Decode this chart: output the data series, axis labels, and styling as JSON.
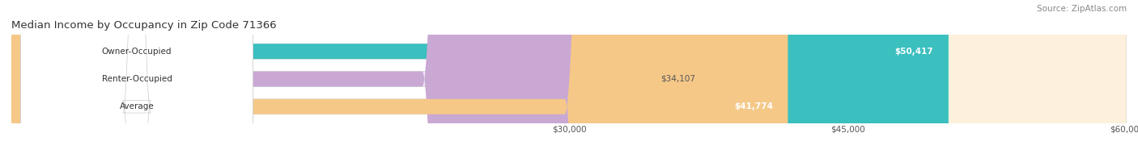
{
  "title": "Median Income by Occupancy in Zip Code 71366",
  "source": "Source: ZipAtlas.com",
  "categories": [
    "Owner-Occupied",
    "Renter-Occupied",
    "Average"
  ],
  "values": [
    50417,
    34107,
    41774
  ],
  "bar_colors": [
    "#3bbfbf",
    "#c9a8d4",
    "#f5c888"
  ],
  "value_labels": [
    "$50,417",
    "$34,107",
    "$41,774"
  ],
  "bg_colors": [
    "#e0f5f5",
    "#efe8f5",
    "#fdf0dc"
  ],
  "xmin": 0,
  "xmax": 60000,
  "xticks": [
    30000,
    45000,
    60000
  ],
  "xtick_labels": [
    "$30,000",
    "$45,000",
    "$60,000"
  ],
  "bar_height": 0.55,
  "figsize": [
    14.06,
    1.96
  ],
  "dpi": 100
}
